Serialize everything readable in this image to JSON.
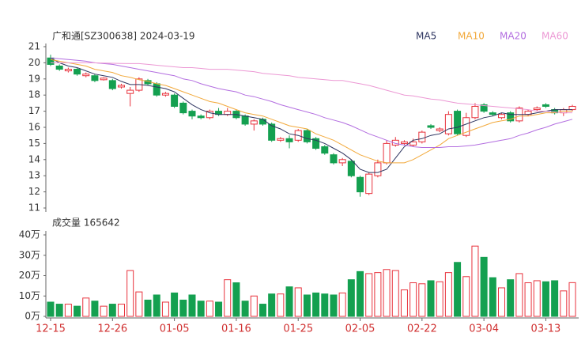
{
  "chart_data": [
    {
      "type": "candlestick",
      "title": "广和通[SZ300638] 2024-03-19",
      "categories": [
        "12-15",
        null,
        null,
        null,
        null,
        null,
        null,
        "12-26",
        null,
        null,
        null,
        null,
        null,
        null,
        "01-05",
        null,
        null,
        null,
        null,
        null,
        null,
        "01-16",
        null,
        null,
        null,
        null,
        null,
        null,
        "01-25",
        null,
        null,
        null,
        null,
        null,
        null,
        "02-05",
        null,
        null,
        null,
        null,
        null,
        null,
        "02-22",
        null,
        null,
        null,
        null,
        null,
        null,
        "03-04",
        null,
        null,
        null,
        null,
        null,
        null,
        "03-13",
        null,
        null,
        null
      ],
      "open": [
        20.3,
        19.8,
        19.5,
        19.6,
        19.2,
        19.2,
        18.95,
        18.9,
        18.5,
        18.1,
        18.3,
        18.9,
        18.7,
        18.0,
        18.0,
        17.5,
        17.0,
        16.7,
        16.6,
        17.0,
        16.8,
        17.0,
        16.7,
        16.2,
        16.5,
        16.2,
        15.2,
        15.3,
        15.2,
        15.8,
        15.3,
        14.8,
        14.3,
        13.8,
        13.9,
        12.9,
        11.9,
        13.0,
        13.8,
        14.9,
        15.0,
        14.9,
        15.1,
        16.1,
        15.8,
        15.6,
        17.0,
        15.5,
        16.6,
        17.4,
        16.9,
        16.6,
        16.9,
        16.4,
        16.8,
        17.1,
        17.4,
        17.1,
        16.9,
        17.1
      ],
      "high": [
        20.5,
        19.9,
        19.7,
        19.7,
        19.4,
        19.3,
        19.1,
        19.0,
        18.7,
        18.5,
        19.1,
        19.0,
        18.8,
        18.2,
        18.1,
        17.6,
        17.1,
        16.8,
        17.1,
        17.2,
        17.2,
        17.1,
        16.8,
        16.5,
        16.6,
        16.3,
        15.4,
        15.5,
        15.9,
        15.9,
        15.4,
        14.9,
        14.4,
        14.1,
        14.0,
        13.0,
        13.2,
        14.0,
        15.2,
        15.4,
        15.2,
        15.3,
        15.8,
        16.2,
        16.0,
        17.0,
        17.1,
        16.9,
        17.5,
        17.5,
        17.0,
        16.9,
        17.0,
        17.3,
        17.1,
        17.3,
        17.5,
        17.2,
        17.2,
        17.4
      ],
      "low": [
        19.8,
        19.5,
        19.4,
        19.2,
        19.1,
        18.8,
        18.9,
        18.3,
        18.4,
        17.3,
        18.2,
        18.6,
        17.9,
        17.9,
        17.2,
        16.8,
        16.5,
        16.5,
        16.5,
        16.7,
        16.7,
        16.5,
        16.1,
        15.8,
        16.1,
        15.1,
        15.1,
        14.7,
        15.1,
        15.0,
        14.6,
        14.3,
        13.7,
        13.6,
        12.9,
        11.7,
        11.8,
        12.9,
        13.7,
        14.8,
        14.9,
        14.8,
        15.0,
        15.9,
        15.7,
        15.5,
        15.5,
        15.4,
        16.5,
        16.9,
        16.7,
        16.5,
        16.3,
        16.3,
        16.7,
        17.0,
        17.2,
        16.8,
        16.7,
        17.0
      ],
      "close": [
        19.9,
        19.6,
        19.6,
        19.3,
        19.3,
        18.9,
        19.05,
        18.4,
        18.6,
        18.3,
        19.0,
        18.7,
        18.0,
        18.1,
        17.3,
        16.9,
        16.7,
        16.6,
        17.0,
        16.8,
        17.0,
        16.6,
        16.2,
        16.4,
        16.2,
        15.2,
        15.3,
        15.1,
        15.8,
        15.1,
        14.7,
        14.4,
        13.8,
        14.0,
        13.0,
        12.0,
        13.1,
        13.8,
        15.0,
        15.2,
        15.1,
        15.1,
        15.7,
        16.0,
        15.9,
        16.8,
        15.6,
        16.6,
        17.3,
        17.0,
        16.8,
        16.8,
        16.4,
        17.2,
        17.0,
        17.2,
        17.3,
        16.9,
        17.1,
        17.3
      ],
      "up_color": "#e8323c",
      "down_color": "#14a050",
      "ylim": [
        11,
        21
      ],
      "yticks": [
        11,
        12,
        13,
        14,
        15,
        16,
        17,
        18,
        19,
        20,
        21
      ],
      "series": [
        {
          "name": "MA5",
          "color": "#2e3560",
          "values": [
            20.3,
            20.0,
            19.8,
            19.7,
            19.5,
            19.3,
            19.2,
            19.1,
            18.85,
            18.65,
            18.65,
            18.6,
            18.5,
            18.4,
            18.2,
            17.8,
            17.4,
            17.1,
            16.9,
            16.8,
            16.8,
            16.8,
            16.7,
            16.6,
            16.5,
            16.1,
            15.9,
            15.6,
            15.5,
            15.3,
            15.2,
            15.0,
            14.7,
            14.4,
            14.0,
            13.4,
            13.2,
            13.2,
            13.4,
            14.1,
            14.8,
            15.2,
            15.3,
            15.5,
            15.6,
            15.9,
            16.0,
            16.2,
            16.4,
            16.6,
            16.7,
            16.9,
            16.8,
            16.8,
            16.8,
            16.9,
            17.0,
            17.1,
            17.1,
            17.1
          ]
        },
        {
          "name": "MA10",
          "color": "#f2a93b",
          "values": [
            20.2,
            20.1,
            20.0,
            19.9,
            19.8,
            19.6,
            19.5,
            19.4,
            19.2,
            19.1,
            18.95,
            18.85,
            18.7,
            18.6,
            18.4,
            18.2,
            18.0,
            17.8,
            17.6,
            17.5,
            17.3,
            17.1,
            16.9,
            16.8,
            16.7,
            16.5,
            16.3,
            16.1,
            16.0,
            15.9,
            15.6,
            15.4,
            15.2,
            14.9,
            14.6,
            14.3,
            14.1,
            13.9,
            13.8,
            13.8,
            13.8,
            14.0,
            14.3,
            14.6,
            14.9,
            15.3,
            15.5,
            15.7,
            15.9,
            16.1,
            16.3,
            16.4,
            16.5,
            16.7,
            16.7,
            16.8,
            16.9,
            16.9,
            17.0,
            17.0
          ]
        },
        {
          "name": "MA20",
          "color": "#b36ee0",
          "values": [
            20.3,
            20.25,
            20.2,
            20.15,
            20.1,
            20.0,
            19.95,
            19.9,
            19.8,
            19.7,
            19.6,
            19.5,
            19.4,
            19.3,
            19.2,
            19.0,
            18.9,
            18.7,
            18.55,
            18.4,
            18.3,
            18.2,
            18.0,
            17.9,
            17.75,
            17.6,
            17.4,
            17.25,
            17.1,
            16.95,
            16.8,
            16.6,
            16.45,
            16.3,
            16.1,
            15.85,
            15.6,
            15.4,
            15.2,
            15.0,
            14.9,
            14.8,
            14.75,
            14.75,
            14.75,
            14.8,
            14.8,
            14.85,
            14.9,
            15.0,
            15.1,
            15.2,
            15.3,
            15.5,
            15.65,
            15.85,
            16.0,
            16.2,
            16.35,
            16.5
          ]
        },
        {
          "name": "MA60",
          "color": "#ec98d4",
          "values": [
            20.0,
            20.0,
            20.0,
            20.0,
            20.0,
            20.0,
            19.98,
            19.97,
            19.96,
            19.95,
            19.95,
            19.9,
            19.85,
            19.8,
            19.75,
            19.7,
            19.7,
            19.65,
            19.6,
            19.6,
            19.6,
            19.55,
            19.5,
            19.45,
            19.35,
            19.3,
            19.25,
            19.2,
            19.1,
            19.05,
            19.0,
            18.95,
            18.9,
            18.9,
            18.8,
            18.7,
            18.6,
            18.45,
            18.3,
            18.15,
            18.0,
            17.95,
            17.85,
            17.75,
            17.7,
            17.6,
            17.5,
            17.45,
            17.4,
            17.35,
            17.3,
            17.25,
            17.2,
            17.15,
            17.1,
            17.0,
            17.0,
            16.95,
            16.9,
            16.9
          ]
        }
      ]
    },
    {
      "type": "bar",
      "title": "成交量 165642",
      "values": [
        7,
        6,
        6,
        5,
        9,
        7.5,
        5,
        6,
        6,
        22.5,
        12,
        8,
        10.5,
        7,
        11.5,
        8,
        10.5,
        7.5,
        7.5,
        7,
        18,
        16.5,
        7.5,
        10,
        6,
        11,
        11,
        14.5,
        14,
        10.5,
        11.5,
        11,
        10.5,
        11.5,
        18,
        22,
        21,
        21.5,
        23,
        22.5,
        13,
        16.5,
        16,
        17.5,
        17,
        21.5,
        26.5,
        19.5,
        34.5,
        29,
        19,
        14,
        18,
        21,
        16.5,
        17.5,
        17,
        17.5,
        12.5,
        16.5642
      ],
      "ylim": [
        0,
        40
      ],
      "yticks": [
        {
          "value": 0,
          "label": "0万"
        },
        {
          "value": 10,
          "label": "10万"
        },
        {
          "value": 20,
          "label": "20万"
        },
        {
          "value": 30,
          "label": "30万"
        },
        {
          "value": 40,
          "label": "40万"
        }
      ]
    }
  ]
}
